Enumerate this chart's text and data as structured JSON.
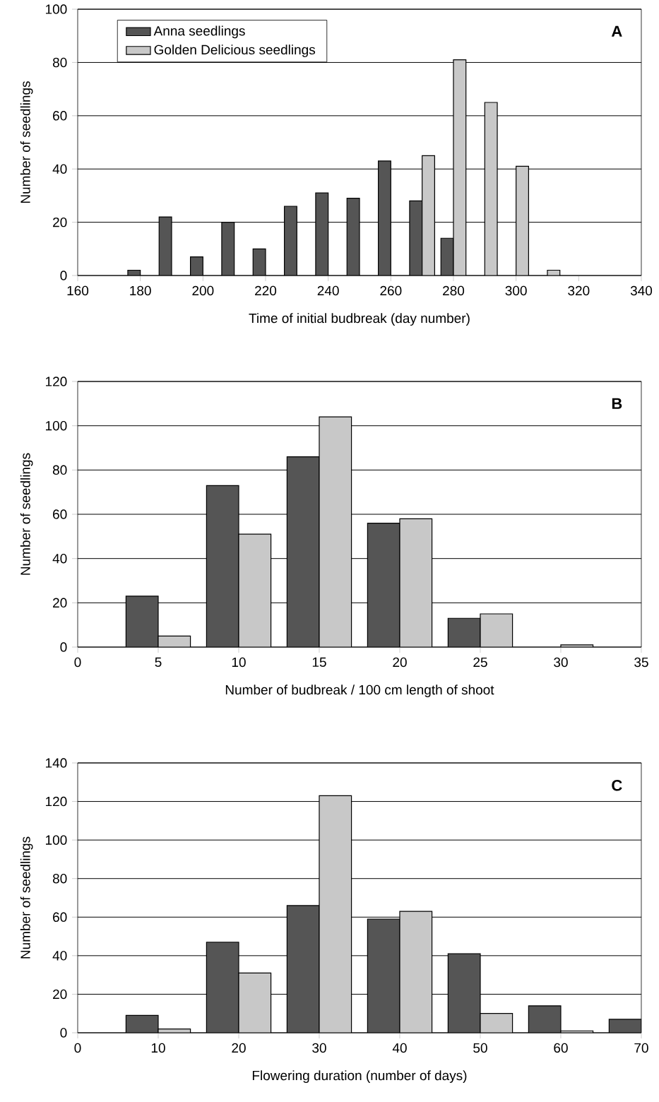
{
  "chart_data": [
    {
      "type": "bar",
      "annotations": [
        "A"
      ],
      "xlabel": "Time of initial budbreak (day number)",
      "ylabel": "Number of seedlings",
      "series": [
        {
          "name": "Anna seedlings",
          "color": "#555555",
          "x": [
            178,
            188,
            198,
            208,
            218,
            228,
            238,
            248,
            258,
            268,
            278
          ],
          "values": [
            2,
            22,
            7,
            20,
            10,
            26,
            31,
            29,
            43,
            28,
            14
          ]
        },
        {
          "name": "Golden Delicious seedlings",
          "color": "#c8c8c8",
          "x": [
            272,
            282,
            292,
            302,
            312
          ],
          "values": [
            45,
            81,
            65,
            41,
            2
          ]
        }
      ],
      "xlim": [
        160,
        340
      ],
      "xticks": [
        160,
        180,
        200,
        220,
        240,
        260,
        280,
        300,
        320,
        340
      ],
      "ylim": [
        0,
        100
      ],
      "yticks": [
        0,
        20,
        40,
        60,
        80,
        100
      ],
      "grid": "y",
      "legend": "top left"
    },
    {
      "type": "bar",
      "annotations": [
        "B"
      ],
      "xlabel": "Number of budbreak / 100 cm length of shoot",
      "ylabel": "Number of seedlings",
      "series": [
        {
          "color": "#555555",
          "x": [
            4,
            9,
            14,
            19,
            24
          ],
          "values": [
            23,
            73,
            86,
            56,
            13
          ]
        },
        {
          "color": "#c8c8c8",
          "x": [
            6,
            11,
            16,
            21,
            26,
            31
          ],
          "values": [
            5,
            51,
            104,
            58,
            15,
            1
          ]
        }
      ],
      "xlim": [
        0,
        35
      ],
      "xticks": [
        0,
        5,
        10,
        15,
        20,
        25,
        30,
        35
      ],
      "ylim": [
        0,
        120
      ],
      "yticks": [
        0,
        20,
        40,
        60,
        80,
        100,
        120
      ],
      "grid": "y"
    },
    {
      "type": "bar",
      "annotations": [
        "C"
      ],
      "xlabel": "Flowering duration (number of days)",
      "ylabel": "Number of seedlings",
      "series": [
        {
          "color": "#555555",
          "x": [
            8,
            18,
            28,
            38,
            48,
            58,
            68
          ],
          "values": [
            9,
            47,
            66,
            59,
            41,
            14,
            7
          ]
        },
        {
          "color": "#c8c8c8",
          "x": [
            12,
            22,
            32,
            42,
            52,
            62
          ],
          "values": [
            2,
            31,
            123,
            63,
            10,
            1
          ]
        }
      ],
      "xlim": [
        0,
        70
      ],
      "xticks": [
        0,
        10,
        20,
        30,
        40,
        50,
        60,
        70
      ],
      "ylim": [
        0,
        140
      ],
      "yticks": [
        0,
        20,
        40,
        60,
        80,
        100,
        120,
        140
      ],
      "grid": "y"
    }
  ]
}
